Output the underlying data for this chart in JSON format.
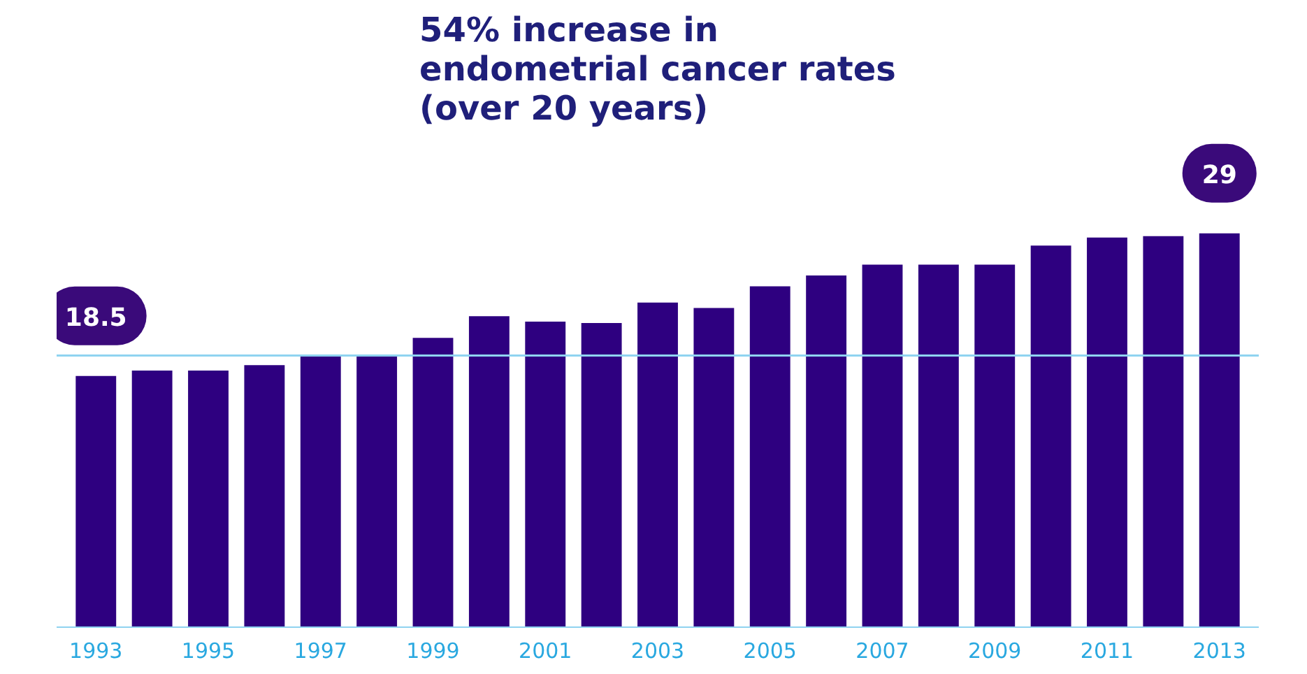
{
  "chart_data": {
    "type": "bar",
    "title": "54% increase in\nendometrial cancer rates\n(over 20 years)",
    "categories": [
      "1993",
      null,
      "1995",
      null,
      "1997",
      null,
      "1999",
      null,
      "2001",
      null,
      "2003",
      null,
      "2005",
      null,
      "2007",
      null,
      "2009",
      null,
      "2011",
      null,
      "2013"
    ],
    "values": [
      18.5,
      18.9,
      18.9,
      19.3,
      20.0,
      20.0,
      21.3,
      22.9,
      22.5,
      22.4,
      23.9,
      23.5,
      25.1,
      25.9,
      26.7,
      26.7,
      26.7,
      28.1,
      28.7,
      28.8,
      29
    ],
    "value_labels": [
      "18.5",
      null,
      null,
      null,
      null,
      null,
      null,
      null,
      null,
      null,
      null,
      null,
      null,
      null,
      null,
      null,
      null,
      null,
      null,
      null,
      "29"
    ],
    "color": "#2e0080",
    "ref_lines": [
      {
        "axis": "y",
        "value": 20,
        "color": "#8fd3f0"
      }
    ],
    "grid": false
  }
}
